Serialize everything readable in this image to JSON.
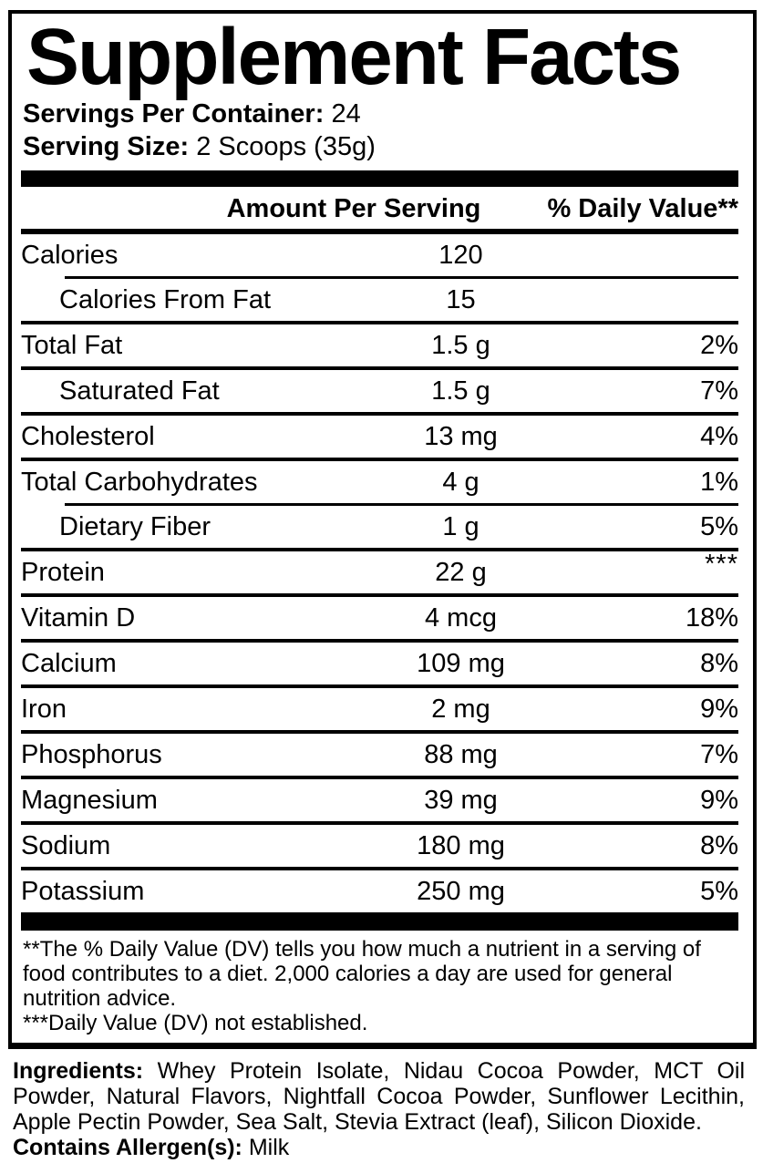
{
  "panel": {
    "title": "Supplement Facts",
    "servings_per_container": {
      "label": "Servings Per Container:",
      "value": "24"
    },
    "serving_size": {
      "label": "Serving Size:",
      "value": "2 Scoops (35g)"
    }
  },
  "table": {
    "header": {
      "amount": "Amount Per Serving",
      "daily_value": "% Daily Value**"
    },
    "rows": [
      {
        "name": "Calories",
        "amount": "120",
        "dv": ""
      },
      {
        "name": "Calories From Fat",
        "amount": "15",
        "dv": ""
      },
      {
        "name": "Total Fat",
        "amount": "1.5 g",
        "dv": "2%"
      },
      {
        "name": "Saturated Fat",
        "amount": "1.5 g",
        "dv": "7%"
      },
      {
        "name": "Cholesterol",
        "amount": "13 mg",
        "dv": "4%"
      },
      {
        "name": "Total Carbohydrates",
        "amount": "4 g",
        "dv": "1%"
      },
      {
        "name": "Dietary Fiber",
        "amount": "1 g",
        "dv": "5%"
      },
      {
        "name": "Protein",
        "amount": "22 g",
        "dv": "***"
      },
      {
        "name": "Vitamin D",
        "amount": "4 mcg",
        "dv": "18%"
      },
      {
        "name": "Calcium",
        "amount": "109 mg",
        "dv": "8%"
      },
      {
        "name": "Iron",
        "amount": "2 mg",
        "dv": "9%"
      },
      {
        "name": "Phosphorus",
        "amount": "88 mg",
        "dv": "7%"
      },
      {
        "name": "Magnesium",
        "amount": "39 mg",
        "dv": "9%"
      },
      {
        "name": "Sodium",
        "amount": "180 mg",
        "dv": "8%"
      },
      {
        "name": "Potassium",
        "amount": "250 mg",
        "dv": "5%"
      }
    ]
  },
  "footnotes": {
    "daily_value": "**The % Daily Value (DV) tells you how much a nutrient in a serving of food contributes to a diet. 2,000 calories a day are used for general nutrition advice.",
    "not_established": "***Daily Value (DV) not established."
  },
  "ingredients": {
    "label": "Ingredients:",
    "text": "Whey Protein Isolate, Nidau Cocoa Powder, MCT Oil Powder, Natural Flavors, Nightfall Cocoa Powder, Sunflower Lecithin, Apple Pectin Powder, Sea Salt, Stevia Extract (leaf), Silicon Dioxide."
  },
  "allergens": {
    "label": "Contains Allergen(s):",
    "value": "Milk"
  },
  "colors": {
    "ink": "#000000",
    "background": "#ffffff"
  }
}
